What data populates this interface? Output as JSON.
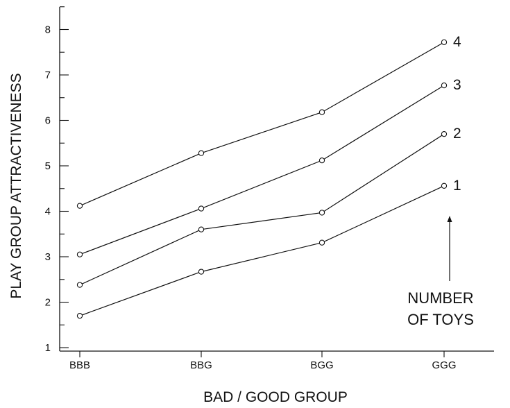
{
  "chart_data": {
    "type": "line",
    "xlabel": "BAD / GOOD GROUP",
    "ylabel": "PLAY GROUP ATTRACTIVENESS",
    "categories": [
      "BBB",
      "BBG",
      "BGG",
      "GGG"
    ],
    "ylim": [
      1,
      8.5
    ],
    "yticks": [
      "1",
      "2",
      "3",
      "4",
      "5",
      "6",
      "7",
      "8"
    ],
    "grid": false,
    "marker": "open-circle",
    "series": [
      {
        "name": "4",
        "values": [
          4.12,
          5.28,
          6.18,
          7.72
        ]
      },
      {
        "name": "3",
        "values": [
          3.05,
          4.06,
          5.12,
          6.77
        ]
      },
      {
        "name": "2",
        "values": [
          2.38,
          3.6,
          3.97,
          5.7
        ]
      },
      {
        "name": "1",
        "values": [
          1.7,
          2.67,
          3.31,
          4.56
        ]
      }
    ],
    "annotation": {
      "lines": [
        "NUMBER",
        "OF TOYS"
      ],
      "arrow": "up"
    }
  }
}
